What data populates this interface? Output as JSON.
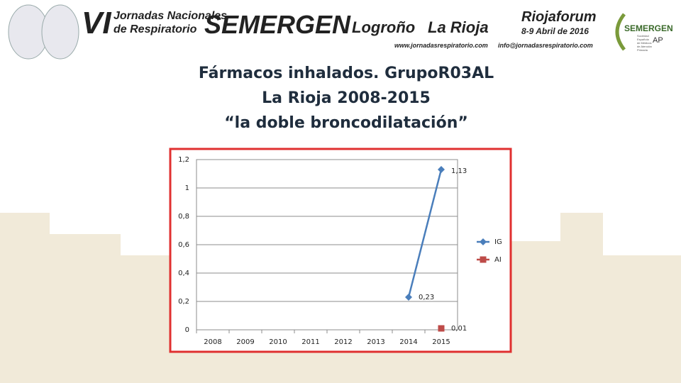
{
  "header": {
    "edition": "VI",
    "event_lines": [
      "Jornadas Nacionales",
      "de Respiratorio"
    ],
    "brand": "SEMERGEN",
    "city": "Logroño",
    "region": "La Rioja",
    "website": "www.jornadasrespiratorio.com",
    "venue": "Riojaforum",
    "dates": "8-9 Abril de 2016",
    "email": "info@jornadasrespiratorio.com",
    "logo_name": "SEMERGEN",
    "logo_suffix": "AP",
    "logo_lines": [
      "Sociedad",
      "Española",
      "de Médicos",
      "de Atención",
      "Primaria"
    ]
  },
  "chart_data": {
    "type": "line",
    "title": [
      "Fármacos inhalados. GrupoR03AL",
      "La Rioja 2008-2015",
      "“la doble broncodilatación”"
    ],
    "categories": [
      "2008",
      "2009",
      "2010",
      "2011",
      "2012",
      "2013",
      "2014",
      "2015"
    ],
    "series": [
      {
        "name": "IG",
        "color": "#4a7ebb",
        "marker": "diamond",
        "values": [
          null,
          null,
          null,
          null,
          null,
          null,
          0.23,
          1.13
        ],
        "value_labels": [
          null,
          null,
          null,
          null,
          null,
          null,
          "0,23",
          "1,13"
        ]
      },
      {
        "name": "AI",
        "color": "#be4b48",
        "marker": "square",
        "values": [
          null,
          null,
          null,
          null,
          null,
          null,
          null,
          0.01
        ],
        "value_labels": [
          null,
          null,
          null,
          null,
          null,
          null,
          null,
          "0,01"
        ]
      }
    ],
    "ylim": [
      0,
      1.2
    ],
    "yticks": [
      0,
      {
        "value": 0.2,
        "label": "0,2"
      },
      {
        "value": 0.4,
        "label": "0,4"
      },
      {
        "value": 0.6,
        "label": "0,6"
      },
      {
        "value": 0.8,
        "label": "0,8"
      },
      1,
      {
        "value": 1.2,
        "label": "1,2"
      }
    ],
    "grid": true,
    "legend": "right"
  }
}
